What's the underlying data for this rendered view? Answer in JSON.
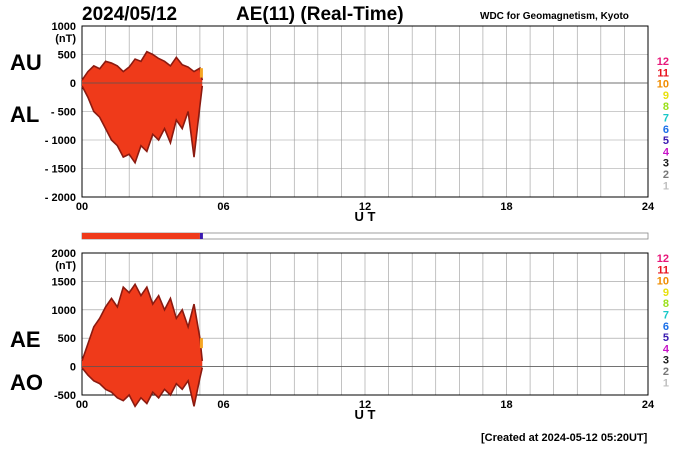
{
  "header": {
    "date": "2024/05/12",
    "title": "AE(11) (Real-Time)",
    "credit": "WDC for Geomagnetism, Kyoto"
  },
  "footer": {
    "created": "[Created at 2024-05-12 05:20UT]"
  },
  "colors": {
    "fill": "#ef3a1a",
    "dark": "#8b1a10",
    "orange": "#f5a623",
    "grid": "#9a9a9a"
  },
  "station_legend": [
    {
      "label": "12",
      "color": "#e8177a"
    },
    {
      "label": "11",
      "color": "#e8101c"
    },
    {
      "label": "10",
      "color": "#f08c00"
    },
    {
      "label": "9",
      "color": "#e8e010"
    },
    {
      "label": "8",
      "color": "#9ae01a"
    },
    {
      "label": "7",
      "color": "#18c8c8"
    },
    {
      "label": "6",
      "color": "#1a6ee8"
    },
    {
      "label": "5",
      "color": "#3a1ab0"
    },
    {
      "label": "4",
      "color": "#c814c8"
    },
    {
      "label": "3",
      "color": "#1a1a1a"
    },
    {
      "label": "2",
      "color": "#777777"
    },
    {
      "label": "1",
      "color": "#c0c0c0"
    }
  ],
  "coverage_bar": {
    "filled_until_hours": 5.0,
    "color": "#ef3a1a"
  },
  "chart_data": [
    {
      "type": "area",
      "panel": "AU/AL",
      "side_labels": [
        "AU",
        "AL"
      ],
      "xlabel": "U T",
      "ylabel": "(nT)",
      "xlim": [
        0,
        24
      ],
      "ylim": [
        -2000,
        1000
      ],
      "x_ticks": [
        {
          "v": 0,
          "label": "00"
        },
        {
          "v": 6,
          "label": "06"
        },
        {
          "v": 12,
          "label": "12"
        },
        {
          "v": 18,
          "label": "18"
        },
        {
          "v": 24,
          "label": "24"
        }
      ],
      "y_ticks": [
        {
          "v": 1000,
          "label": "1000"
        },
        {
          "v": 500,
          "label": "500"
        },
        {
          "v": 0,
          "label": "0"
        },
        {
          "v": -500,
          "label": "- 500"
        },
        {
          "v": -1000,
          "label": "- 1000"
        },
        {
          "v": -1500,
          "label": "- 1500"
        },
        {
          "v": -2000,
          "label": "- 2000"
        }
      ],
      "grid": true,
      "series": [
        {
          "name": "AU",
          "x": [
            0.0,
            0.25,
            0.5,
            0.75,
            1.0,
            1.25,
            1.5,
            1.75,
            2.0,
            2.25,
            2.5,
            2.75,
            3.0,
            3.25,
            3.5,
            3.75,
            4.0,
            4.25,
            4.5,
            4.75,
            5.0,
            5.1
          ],
          "y": [
            50,
            200,
            300,
            250,
            380,
            350,
            300,
            200,
            280,
            420,
            380,
            550,
            500,
            430,
            380,
            300,
            450,
            320,
            280,
            200,
            260,
            50
          ]
        },
        {
          "name": "AL",
          "x": [
            0.0,
            0.25,
            0.5,
            0.75,
            1.0,
            1.25,
            1.5,
            1.75,
            2.0,
            2.25,
            2.5,
            2.75,
            3.0,
            3.25,
            3.5,
            3.75,
            4.0,
            4.25,
            4.5,
            4.75,
            5.0,
            5.1
          ],
          "y": [
            -50,
            -250,
            -500,
            -600,
            -800,
            -1000,
            -1100,
            -1300,
            -1250,
            -1400,
            -1100,
            -1200,
            -900,
            -1000,
            -800,
            -1050,
            -650,
            -800,
            -500,
            -1300,
            -400,
            -50
          ]
        }
      ]
    },
    {
      "type": "area",
      "panel": "AE/AO",
      "side_labels": [
        "AE",
        "AO"
      ],
      "xlabel": "U T",
      "ylabel": "(nT)",
      "xlim": [
        0,
        24
      ],
      "ylim": [
        -500,
        2000
      ],
      "x_ticks": [
        {
          "v": 0,
          "label": "00"
        },
        {
          "v": 6,
          "label": "06"
        },
        {
          "v": 12,
          "label": "12"
        },
        {
          "v": 18,
          "label": "18"
        },
        {
          "v": 24,
          "label": "24"
        }
      ],
      "y_ticks": [
        {
          "v": 2000,
          "label": "2000"
        },
        {
          "v": 1500,
          "label": "1500"
        },
        {
          "v": 1000,
          "label": "1000"
        },
        {
          "v": 500,
          "label": "500"
        },
        {
          "v": 0,
          "label": "0"
        },
        {
          "v": -500,
          "label": "-500"
        }
      ],
      "grid": true,
      "series": [
        {
          "name": "AE",
          "x": [
            0.0,
            0.25,
            0.5,
            0.75,
            1.0,
            1.25,
            1.5,
            1.75,
            2.0,
            2.25,
            2.5,
            2.75,
            3.0,
            3.25,
            3.5,
            3.75,
            4.0,
            4.25,
            4.5,
            4.75,
            5.0,
            5.1
          ],
          "y": [
            100,
            400,
            700,
            850,
            1050,
            1200,
            1050,
            1400,
            1300,
            1450,
            1250,
            1400,
            1100,
            1250,
            1000,
            1200,
            850,
            1000,
            700,
            1100,
            500,
            100
          ]
        },
        {
          "name": "AO",
          "x": [
            0.0,
            0.25,
            0.5,
            0.75,
            1.0,
            1.25,
            1.5,
            1.75,
            2.0,
            2.25,
            2.5,
            2.75,
            3.0,
            3.25,
            3.5,
            3.75,
            4.0,
            4.25,
            4.5,
            4.75,
            5.0,
            5.1
          ],
          "y": [
            -20,
            -150,
            -250,
            -300,
            -400,
            -450,
            -550,
            -600,
            -500,
            -700,
            -550,
            -650,
            -450,
            -550,
            -400,
            -500,
            -300,
            -400,
            -250,
            -700,
            -200,
            -20
          ]
        }
      ]
    }
  ]
}
